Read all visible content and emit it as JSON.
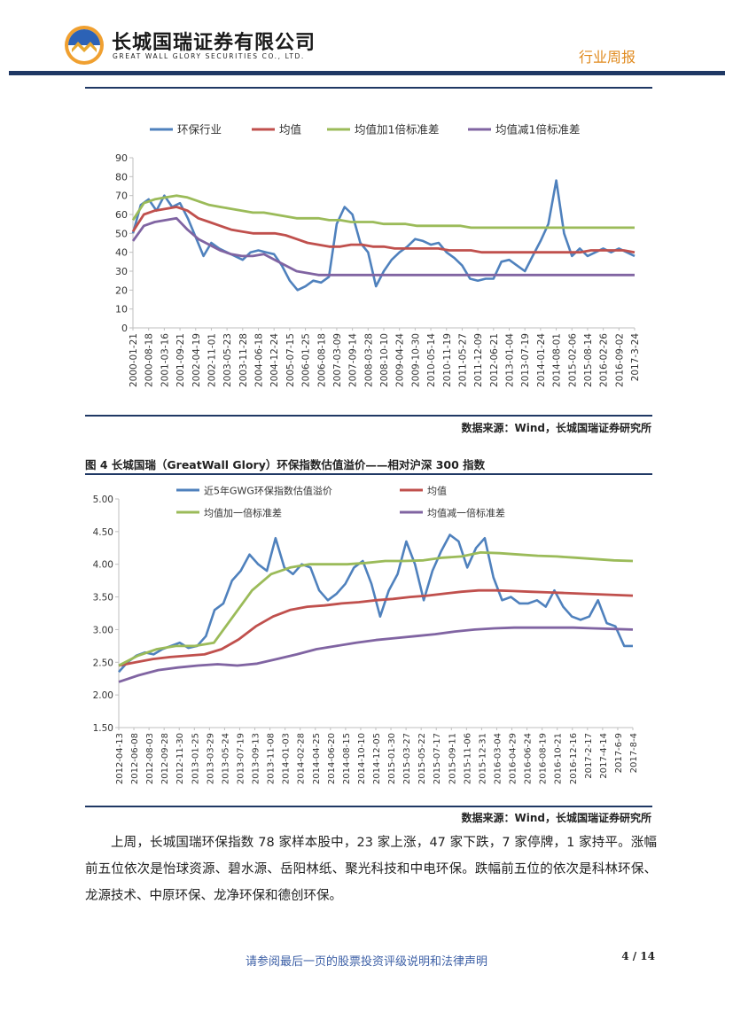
{
  "header": {
    "company_cn": "长城国瑞证券有限公司",
    "company_en": "GREAT WALL GLORY SECURITIES CO., LTD.",
    "doc_type": "行业周报"
  },
  "colors": {
    "navy": "#1f3864",
    "orange": "#e08a1e",
    "blue_series": "#4f81bd",
    "red_series": "#c0504d",
    "green_series": "#9bbb59",
    "purple_series": "#8064a2"
  },
  "chart_data": [
    {
      "type": "line",
      "title": "",
      "legend": [
        "环保行业",
        "均值",
        "均值加1倍标准差",
        "均值减1倍标准差"
      ],
      "legend_position": "top",
      "ylim": [
        0,
        90
      ],
      "yticks": [
        "0",
        "10",
        "20",
        "30",
        "40",
        "50",
        "60",
        "70",
        "80",
        "90"
      ],
      "xticks": [
        "2000-01-21",
        "2000-08-18",
        "2001-03-16",
        "2001-09-21",
        "2002-04-19",
        "2002-11-01",
        "2003-05-23",
        "2003-11-28",
        "2004-06-18",
        "2004-12-24",
        "2005-07-15",
        "2006-01-25",
        "2006-08-18",
        "2007-03-09",
        "2007-09-14",
        "2008-03-28",
        "2008-10-10",
        "2009-04-24",
        "2009-10-30",
        "2010-05-14",
        "2010-11-19",
        "2011-05-27",
        "2011-12-09",
        "2012-06-21",
        "2013-01-04",
        "2013-07-19",
        "2014-01-24",
        "2014-08-01",
        "2015-02-06",
        "2015-08-14",
        "2016-02-26",
        "2016-09-02",
        "2017-3-24"
      ],
      "series": [
        {
          "name": "环保行业",
          "values": [
            50,
            65,
            68,
            62,
            70,
            64,
            66,
            58,
            48,
            38,
            45,
            42,
            40,
            38,
            36,
            40,
            41,
            40,
            39,
            33,
            25,
            20,
            22,
            25,
            24,
            27,
            55,
            64,
            60,
            45,
            40,
            22,
            30,
            36,
            40,
            43,
            47,
            46,
            44,
            45,
            40,
            37,
            33,
            26,
            25,
            26,
            26,
            35,
            36,
            33,
            30,
            38,
            46,
            55,
            78,
            50,
            38,
            42,
            38,
            40,
            42,
            40,
            42,
            40,
            38
          ]
        },
        {
          "name": "均值",
          "values": [
            51,
            60,
            62,
            63,
            64,
            62,
            58,
            56,
            54,
            52,
            51,
            50,
            50,
            50,
            49,
            47,
            45,
            44,
            43,
            43,
            44,
            44,
            43,
            43,
            42,
            42,
            42,
            42,
            42,
            41,
            41,
            41,
            40,
            40,
            40,
            40,
            40,
            40,
            40,
            40,
            40,
            40,
            41,
            41,
            41,
            41,
            40
          ]
        },
        {
          "name": "均值加1倍标准差",
          "values": [
            57,
            66,
            68,
            69,
            70,
            69,
            67,
            65,
            64,
            63,
            62,
            61,
            61,
            60,
            59,
            58,
            58,
            58,
            57,
            57,
            56,
            56,
            56,
            55,
            55,
            55,
            54,
            54,
            54,
            54,
            54,
            53,
            53,
            53,
            53,
            53,
            53,
            53,
            53,
            53,
            53,
            53,
            53,
            53,
            53,
            53,
            53
          ]
        },
        {
          "name": "均值减1倍标准差",
          "values": [
            46,
            54,
            56,
            57,
            58,
            52,
            47,
            44,
            41,
            39,
            38,
            38,
            39,
            36,
            33,
            30,
            29,
            28,
            28,
            28,
            28,
            28,
            28,
            28,
            28,
            28,
            28,
            28,
            28,
            28,
            28,
            28,
            28,
            28,
            28,
            28,
            28,
            28,
            28,
            28,
            28,
            28,
            28,
            28,
            28,
            28,
            28
          ]
        }
      ]
    },
    {
      "type": "line",
      "title": "",
      "legend": [
        "近5年GWG环保指数估值溢价",
        "均值",
        "均值加一倍标准差",
        "均值减一倍标准差"
      ],
      "legend_position": "top",
      "ylim": [
        1.5,
        5.0
      ],
      "yticks": [
        "1.50",
        "2.00",
        "2.50",
        "3.00",
        "3.50",
        "4.00",
        "4.50",
        "5.00"
      ],
      "xticks": [
        "2012-04-13",
        "2012-06-08",
        "2012-08-03",
        "2012-09-28",
        "2012-11-30",
        "2013-01-25",
        "2013-03-29",
        "2013-05-24",
        "2013-07-19",
        "2013-09-13",
        "2013-11-08",
        "2014-01-03",
        "2014-02-28",
        "2014-04-25",
        "2014-06-20",
        "2014-08-15",
        "2014-10-10",
        "2014-12-05",
        "2015-01-30",
        "2015-03-27",
        "2015-05-22",
        "2015-07-17",
        "2015-09-11",
        "2015-11-06",
        "2015-12-31",
        "2016-03-04",
        "2016-04-29",
        "2016-06-24",
        "2016-08-19",
        "2016-10-21",
        "2016-12-16",
        "2017-2-17",
        "2017-4-14",
        "2017-6-9",
        "2017-8-4"
      ],
      "series": [
        {
          "name": "近5年GWG环保指数估值溢价",
          "values": [
            2.35,
            2.5,
            2.6,
            2.65,
            2.62,
            2.7,
            2.75,
            2.8,
            2.72,
            2.75,
            2.9,
            3.3,
            3.4,
            3.75,
            3.9,
            4.15,
            4.0,
            3.9,
            4.4,
            3.95,
            3.85,
            4.0,
            3.95,
            3.6,
            3.45,
            3.55,
            3.7,
            3.95,
            4.05,
            3.7,
            3.2,
            3.6,
            3.85,
            4.35,
            4.0,
            3.45,
            3.9,
            4.2,
            4.45,
            4.35,
            3.95,
            4.25,
            4.4,
            3.8,
            3.45,
            3.5,
            3.4,
            3.4,
            3.45,
            3.35,
            3.6,
            3.35,
            3.2,
            3.15,
            3.2,
            3.45,
            3.1,
            3.05,
            2.75,
            2.75
          ]
        },
        {
          "name": "均值",
          "values": [
            2.45,
            2.5,
            2.55,
            2.58,
            2.6,
            2.62,
            2.7,
            2.85,
            3.05,
            3.2,
            3.3,
            3.35,
            3.37,
            3.4,
            3.42,
            3.45,
            3.47,
            3.5,
            3.52,
            3.55,
            3.58,
            3.6,
            3.6,
            3.59,
            3.58,
            3.57,
            3.56,
            3.55,
            3.54,
            3.53,
            3.52
          ]
        },
        {
          "name": "均值加一倍标准差",
          "values": [
            2.45,
            2.6,
            2.7,
            2.75,
            2.75,
            2.8,
            3.2,
            3.6,
            3.85,
            3.95,
            4.0,
            4.0,
            4.0,
            4.02,
            4.05,
            4.05,
            4.06,
            4.1,
            4.12,
            4.18,
            4.17,
            4.15,
            4.13,
            4.12,
            4.1,
            4.08,
            4.06,
            4.05
          ]
        },
        {
          "name": "均值减一倍标准差",
          "values": [
            2.2,
            2.3,
            2.38,
            2.42,
            2.45,
            2.47,
            2.45,
            2.48,
            2.55,
            2.62,
            2.7,
            2.75,
            2.8,
            2.84,
            2.87,
            2.9,
            2.93,
            2.97,
            3.0,
            3.02,
            3.03,
            3.03,
            3.03,
            3.03,
            3.02,
            3.01,
            3.0
          ]
        }
      ]
    }
  ],
  "source1": "数据来源：Wind，长城国瑞证券研究所",
  "figure_caption": "图 4 长城国瑞（GreatWall Glory）环保指数估值溢价——相对沪深 300 指数",
  "source2": "数据来源：Wind，长城国瑞证券研究所",
  "paragraph": "上周，长城国瑞环保指数 78 家样本股中，23 家上涨，47 家下跌，7 家停牌，1 家持平。涨幅前五位依次是怡球资源、碧水源、岳阳林纸、聚光科技和中电环保。跌幅前五位的依次是科林环保、龙源技术、中原环保、龙净环保和德创环保。",
  "footer": {
    "note": "请参阅最后一页的股票投资评级说明和法律声明",
    "page": "4 / 14"
  }
}
